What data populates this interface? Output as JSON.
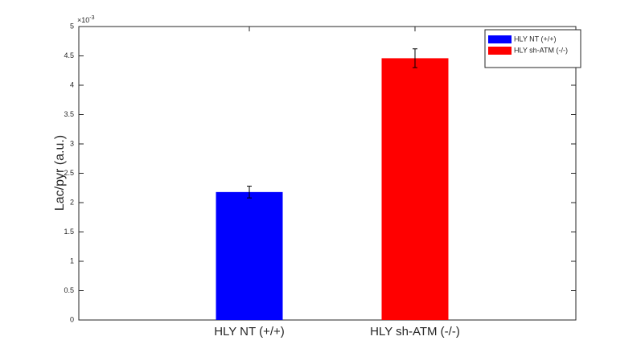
{
  "chart_data": {
    "type": "bar",
    "y_label": "Lac/pyr (a.u.)",
    "y_multiplier": {
      "base": "×10",
      "exponent": "-3"
    },
    "categories": [
      "HLY NT (+/+)",
      "HLY sh-ATM (-/-)"
    ],
    "values": [
      2.18,
      4.46
    ],
    "errors": [
      0.1,
      0.16
    ],
    "colors": [
      "#0000ff",
      "#ff0000"
    ],
    "ylim": [
      0,
      5
    ],
    "yticks": [
      0,
      0.5,
      1,
      1.5,
      2,
      2.5,
      3,
      3.5,
      4,
      4.5,
      5
    ],
    "legend": "top-right"
  }
}
